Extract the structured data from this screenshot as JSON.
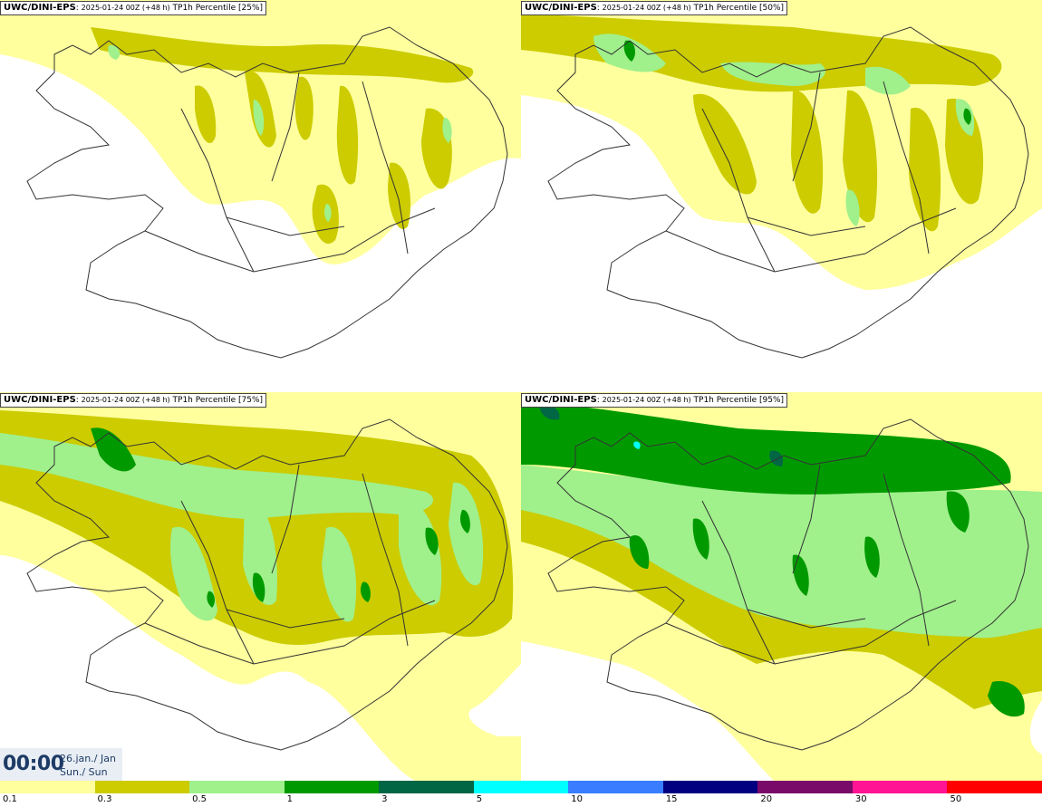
{
  "panels": [
    {
      "model": "UWC/DINI-EPS",
      "run": "2025-01-24 00Z (+48 h)",
      "product": "TP1h Percentile [25%]"
    },
    {
      "model": "UWC/DINI-EPS",
      "run": "2025-01-24 00Z (+48 h)",
      "product": "TP1h Percentile [50%]"
    },
    {
      "model": "UWC/DINI-EPS",
      "run": "2025-01-24 00Z (+48 h)",
      "product": "TP1h Percentile [75%]"
    },
    {
      "model": "UWC/DINI-EPS",
      "run": "2025-01-24 00Z (+48 h)",
      "product": "TP1h Percentile [95%]"
    }
  ],
  "valid_time": {
    "time": "00:00",
    "date_line1": "26.jan./ Jan",
    "date_line2": "Sun./ Sun"
  },
  "legend": {
    "tick_labels": [
      "0.1",
      "0.3",
      "0.5",
      "1",
      "3",
      "5",
      "10",
      "15",
      "20",
      "30",
      "50"
    ],
    "colors": [
      "#ffff9e",
      "#cccc00",
      "#a0f08c",
      "#009a00",
      "#006644",
      "#00ffff",
      "#3a7dff",
      "#000080",
      "#7a0a6a",
      "#ff1493",
      "#ff0000"
    ]
  }
}
